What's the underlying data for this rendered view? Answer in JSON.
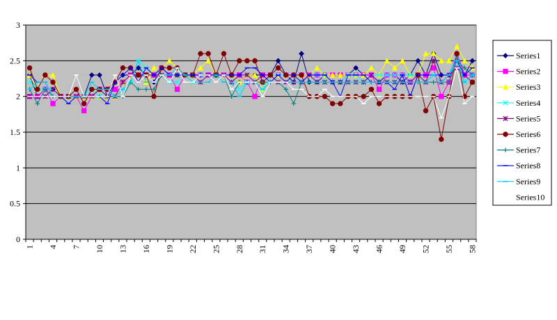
{
  "chart_data": {
    "type": "line",
    "title": "",
    "xlabel": "",
    "ylabel": "",
    "x": [
      1,
      2,
      3,
      4,
      5,
      6,
      7,
      8,
      9,
      10,
      11,
      12,
      13,
      14,
      15,
      16,
      17,
      18,
      19,
      20,
      21,
      22,
      23,
      24,
      25,
      26,
      27,
      28,
      29,
      30,
      31,
      32,
      33,
      34,
      35,
      36,
      37,
      38,
      39,
      40,
      41,
      42,
      43,
      44,
      45,
      46,
      47,
      48,
      49,
      50,
      51,
      52,
      53,
      54,
      55,
      56,
      57,
      58
    ],
    "x_tick_labels": [
      "1",
      "4",
      "7",
      "10",
      "13",
      "16",
      "19",
      "22",
      "25",
      "28",
      "31",
      "34",
      "37",
      "40",
      "43",
      "46",
      "49",
      "52",
      "55",
      "58"
    ],
    "ylim": [
      0,
      3
    ],
    "y_tick_labels": [
      "0",
      "0.5",
      "1",
      "1.5",
      "2",
      "2.5",
      "3"
    ],
    "grid": "horizontal",
    "plot_background": "#c0c0c0",
    "legend_position": "right",
    "series": [
      {
        "name": "Series1",
        "color": "#000080",
        "marker": "diamond",
        "values": [
          2.3,
          2.0,
          2.1,
          2.1,
          2.0,
          2.0,
          2.0,
          2.0,
          2.3,
          2.3,
          2.0,
          2.2,
          2.3,
          2.3,
          2.4,
          2.3,
          2.2,
          2.4,
          2.3,
          2.3,
          2.3,
          2.3,
          2.3,
          2.3,
          2.3,
          2.3,
          2.3,
          2.2,
          2.3,
          2.3,
          2.3,
          2.3,
          2.5,
          2.3,
          2.2,
          2.6,
          2.2,
          2.2,
          2.3,
          2.2,
          2.2,
          2.3,
          2.4,
          2.3,
          2.3,
          2.2,
          2.3,
          2.3,
          2.2,
          2.3,
          2.5,
          2.3,
          2.6,
          2.3,
          2.3,
          2.6,
          2.3,
          2.5
        ]
      },
      {
        "name": "Series2",
        "color": "#ff00ff",
        "marker": "square",
        "values": [
          2.0,
          2.0,
          2.1,
          1.9,
          2.0,
          2.0,
          2.0,
          1.8,
          2.0,
          2.1,
          2.1,
          2.1,
          2.2,
          2.3,
          2.3,
          2.3,
          2.3,
          2.4,
          2.3,
          2.1,
          2.3,
          2.3,
          2.3,
          2.3,
          2.3,
          2.3,
          2.3,
          2.3,
          2.2,
          2.0,
          2.3,
          2.3,
          2.3,
          2.3,
          2.3,
          2.3,
          2.3,
          2.3,
          2.3,
          2.3,
          2.3,
          2.3,
          2.3,
          2.3,
          2.3,
          2.1,
          2.3,
          2.3,
          2.3,
          2.2,
          2.3,
          2.3,
          2.4,
          2.0,
          2.2,
          2.6,
          2.3,
          2.3
        ]
      },
      {
        "name": "Series3",
        "color": "#ffff00",
        "marker": "triangle",
        "values": [
          2.3,
          2.1,
          2.3,
          2.3,
          2.0,
          2.0,
          2.0,
          2.0,
          2.0,
          2.0,
          2.0,
          2.0,
          2.2,
          2.3,
          2.3,
          2.2,
          2.4,
          2.4,
          2.5,
          2.4,
          2.3,
          2.3,
          2.4,
          2.5,
          2.3,
          2.3,
          2.3,
          2.2,
          2.3,
          2.3,
          2.1,
          2.3,
          2.3,
          2.3,
          2.3,
          2.3,
          2.3,
          2.4,
          2.3,
          2.3,
          2.3,
          2.3,
          2.3,
          2.3,
          2.4,
          2.3,
          2.5,
          2.4,
          2.5,
          2.3,
          2.3,
          2.6,
          2.6,
          2.5,
          2.5,
          2.7,
          2.5,
          2.4
        ]
      },
      {
        "name": "Series4",
        "color": "#00ffff",
        "marker": "x",
        "values": [
          2.2,
          2.1,
          2.1,
          2.1,
          2.0,
          2.0,
          2.0,
          2.0,
          2.1,
          2.0,
          2.1,
          2.0,
          2.1,
          2.2,
          2.5,
          2.4,
          2.3,
          2.3,
          2.2,
          2.2,
          2.3,
          2.2,
          2.3,
          2.3,
          2.3,
          2.3,
          2.3,
          2.1,
          2.2,
          2.2,
          2.1,
          2.3,
          2.3,
          2.3,
          2.3,
          2.2,
          2.3,
          2.3,
          2.3,
          2.2,
          2.2,
          2.3,
          2.3,
          2.2,
          2.3,
          2.3,
          2.3,
          2.3,
          2.3,
          2.3,
          2.3,
          2.2,
          2.3,
          2.2,
          2.3,
          2.6,
          2.2,
          2.3
        ]
      },
      {
        "name": "Series5",
        "color": "#800080",
        "marker": "star",
        "values": [
          2.0,
          2.0,
          2.0,
          2.1,
          2.0,
          2.0,
          2.0,
          2.0,
          2.0,
          2.1,
          2.0,
          2.0,
          2.2,
          2.3,
          2.3,
          2.3,
          2.3,
          2.3,
          2.3,
          2.3,
          2.3,
          2.3,
          2.2,
          2.3,
          2.3,
          2.3,
          2.2,
          2.3,
          2.3,
          2.2,
          2.3,
          2.3,
          2.2,
          2.2,
          2.2,
          2.2,
          2.3,
          2.2,
          2.2,
          2.2,
          2.2,
          2.2,
          2.2,
          2.2,
          2.3,
          2.2,
          2.2,
          2.2,
          2.2,
          2.2,
          2.3,
          2.2,
          2.5,
          2.2,
          2.3,
          2.4,
          2.3,
          2.2
        ]
      },
      {
        "name": "Series6",
        "color": "#800000",
        "marker": "circle",
        "values": [
          2.4,
          2.1,
          2.3,
          2.2,
          2.0,
          2.0,
          2.1,
          1.9,
          2.1,
          2.1,
          2.1,
          2.2,
          2.4,
          2.4,
          2.3,
          2.3,
          2.0,
          2.4,
          2.4,
          2.4,
          2.3,
          2.3,
          2.6,
          2.6,
          2.3,
          2.6,
          2.3,
          2.5,
          2.5,
          2.5,
          2.2,
          2.3,
          2.4,
          2.3,
          2.3,
          2.3,
          2.0,
          2.0,
          2.0,
          1.9,
          1.9,
          2.0,
          2.0,
          2.0,
          2.1,
          1.9,
          2.0,
          2.0,
          2.0,
          2.0,
          2.3,
          1.8,
          2.0,
          1.4,
          2.0,
          2.6,
          2.0,
          2.2
        ]
      },
      {
        "name": "Series7",
        "color": "#008080",
        "marker": "plus",
        "values": [
          2.1,
          1.9,
          2.1,
          2.0,
          2.0,
          2.0,
          2.0,
          2.0,
          2.0,
          2.0,
          2.0,
          2.0,
          2.0,
          2.2,
          2.1,
          2.1,
          2.1,
          2.3,
          2.3,
          2.3,
          2.3,
          2.3,
          2.3,
          2.3,
          2.3,
          2.3,
          2.0,
          2.2,
          2.2,
          2.2,
          2.2,
          2.2,
          2.2,
          2.1,
          1.9,
          2.2,
          2.2,
          2.2,
          2.2,
          2.2,
          2.2,
          2.2,
          2.2,
          2.2,
          2.2,
          2.2,
          2.2,
          2.2,
          2.2,
          2.2,
          2.2,
          2.2,
          2.2,
          2.2,
          2.2,
          2.5,
          2.4,
          2.3
        ]
      },
      {
        "name": "Series8",
        "color": "#0000ff",
        "marker": "dash",
        "values": [
          2.3,
          2.2,
          2.2,
          2.0,
          2.0,
          1.9,
          2.0,
          2.0,
          2.0,
          2.0,
          1.9,
          2.2,
          2.3,
          2.4,
          2.2,
          2.4,
          2.3,
          2.4,
          2.3,
          2.3,
          2.3,
          2.3,
          2.3,
          2.3,
          2.3,
          2.3,
          2.3,
          2.3,
          2.4,
          2.4,
          2.3,
          2.2,
          2.3,
          2.2,
          2.3,
          2.2,
          2.3,
          2.3,
          2.3,
          2.2,
          2.0,
          2.3,
          2.3,
          2.3,
          2.2,
          2.2,
          2.2,
          2.1,
          2.3,
          2.0,
          2.3,
          2.3,
          2.3,
          2.3,
          2.3,
          2.5,
          2.3,
          2.4
        ]
      },
      {
        "name": "Series9",
        "color": "#00ccff",
        "marker": "dash",
        "values": [
          2.1,
          2.2,
          2.2,
          2.0,
          2.0,
          2.0,
          2.0,
          2.0,
          2.2,
          2.1,
          2.1,
          2.0,
          2.1,
          2.2,
          2.5,
          2.2,
          2.2,
          2.3,
          2.3,
          2.4,
          2.3,
          2.2,
          2.2,
          2.2,
          2.3,
          2.2,
          2.2,
          2.0,
          2.2,
          2.2,
          2.1,
          2.2,
          2.2,
          2.2,
          2.2,
          2.2,
          2.2,
          2.2,
          2.2,
          2.2,
          2.2,
          2.2,
          2.2,
          2.2,
          2.2,
          2.2,
          2.2,
          2.2,
          2.2,
          2.2,
          2.2,
          2.2,
          2.3,
          2.2,
          2.3,
          2.5,
          2.2,
          2.3
        ]
      },
      {
        "name": "Series10",
        "color": "#ffffff",
        "marker": "dash",
        "values": [
          2.0,
          2.0,
          2.0,
          2.0,
          2.0,
          2.0,
          2.3,
          2.0,
          2.0,
          2.0,
          2.0,
          2.3,
          2.0,
          2.3,
          2.2,
          2.3,
          2.2,
          2.3,
          2.2,
          2.4,
          2.2,
          2.2,
          2.3,
          2.3,
          2.2,
          2.3,
          2.1,
          2.2,
          2.2,
          2.2,
          2.0,
          2.2,
          2.2,
          2.2,
          2.1,
          2.1,
          2.0,
          2.0,
          2.1,
          2.0,
          2.0,
          2.0,
          2.0,
          1.9,
          2.0,
          2.0,
          2.0,
          2.0,
          2.0,
          2.0,
          2.0,
          2.0,
          2.0,
          1.7,
          2.0,
          2.4,
          1.9,
          2.0
        ]
      }
    ]
  }
}
